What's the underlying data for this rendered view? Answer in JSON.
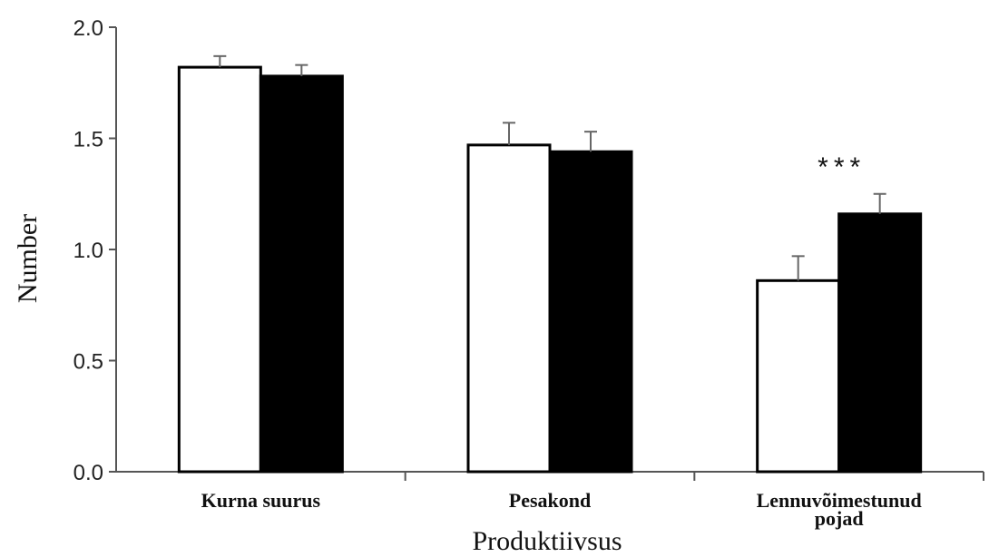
{
  "chart_data": {
    "type": "bar",
    "title": "",
    "xlabel": "Produktiivsus",
    "ylabel": "Number",
    "ylim": [
      0,
      2.0
    ],
    "yticks": [
      "0.0",
      "0.5",
      "1.0",
      "1.5",
      "2.0"
    ],
    "ytick_values": [
      0,
      0.5,
      1.0,
      1.5,
      2.0
    ],
    "grid": false,
    "legend": "none",
    "categories": [
      [
        "Kurna suurus"
      ],
      [
        "Pesakond"
      ],
      [
        "Lennuvõimestunud",
        "pojad"
      ]
    ],
    "series": [
      {
        "color": "#ffffff",
        "values": [
          1.82,
          1.47,
          0.86
        ],
        "errors": [
          0.05,
          0.1,
          0.11
        ]
      },
      {
        "color": "#000000",
        "values": [
          1.78,
          1.44,
          1.16
        ],
        "errors": [
          0.05,
          0.09,
          0.09
        ]
      }
    ],
    "annotations": [
      {
        "text": "***",
        "category": 2
      }
    ]
  }
}
